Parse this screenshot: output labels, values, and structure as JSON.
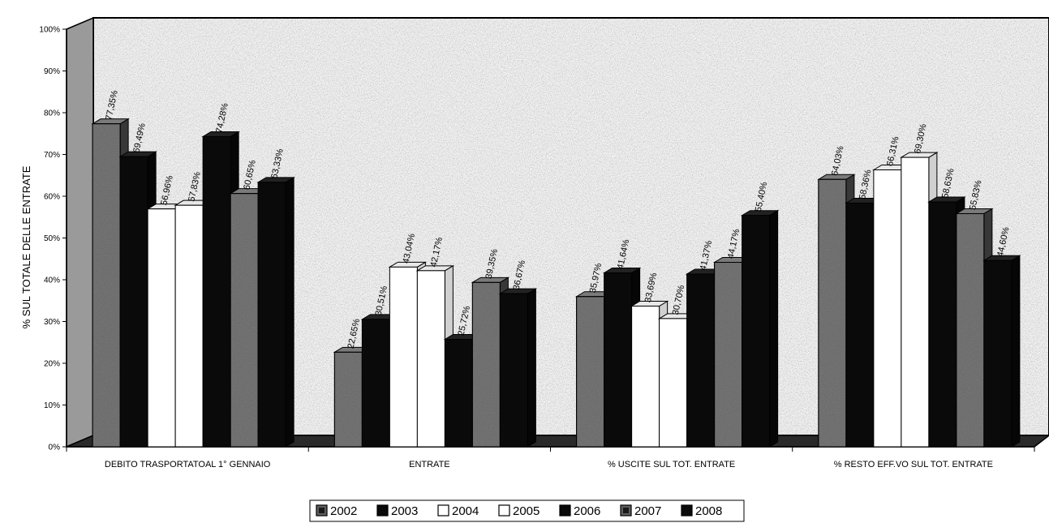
{
  "chart_data": {
    "type": "bar",
    "title": "",
    "xlabel": "",
    "ylabel": "% SUL TOTALE DELLE ENTRATE",
    "ylim": [
      0,
      100
    ],
    "y_ticks": [
      "0%",
      "10%",
      "20%",
      "30%",
      "40%",
      "50%",
      "60%",
      "70%",
      "80%",
      "90%",
      "100%"
    ],
    "grid": false,
    "legend_position": "bottom",
    "categories": [
      "DEBITO TRASPORTATOAL 1° GENNAIO",
      "ENTRATE",
      "% USCITE SUL TOT. ENTRATE",
      "% RESTO EFF.VO SUL TOT. ENTRATE"
    ],
    "series": [
      {
        "name": "2002",
        "color": "#5e5e5e",
        "values": [
          77.35,
          22.65,
          35.97,
          64.03
        ],
        "labels": [
          "77,35%",
          "22,65%",
          "35,97%",
          "64,03%"
        ]
      },
      {
        "name": "2003",
        "color": "#0a0a0a",
        "values": [
          69.49,
          30.51,
          41.64,
          58.36
        ],
        "labels": [
          "69,49%",
          "30,51%",
          "41,64%",
          "58,36%"
        ]
      },
      {
        "name": "2004",
        "color": "#ffffff",
        "values": [
          56.96,
          43.04,
          33.69,
          66.31
        ],
        "labels": [
          "56,96%",
          "43,04%",
          "33,69%",
          "66,31%"
        ]
      },
      {
        "name": "2005",
        "color": "#ffffff",
        "values": [
          57.83,
          42.17,
          30.7,
          69.3
        ],
        "labels": [
          "57,83%",
          "42,17%",
          "30,70%",
          "69,30%"
        ]
      },
      {
        "name": "2006",
        "color": "#0a0a0a",
        "values": [
          74.28,
          25.72,
          41.37,
          58.63
        ],
        "labels": [
          "74,28%",
          "25,72%",
          "41,37%",
          "58,63%"
        ]
      },
      {
        "name": "2007",
        "color": "#5e5e5e",
        "values": [
          60.65,
          39.35,
          44.17,
          55.83
        ],
        "labels": [
          "60,65%",
          "39,35%",
          "44,17%",
          "55,83%"
        ]
      },
      {
        "name": "2008",
        "color": "#0a0a0a",
        "values": [
          63.33,
          36.67,
          55.4,
          44.6
        ],
        "labels": [
          "63,33%",
          "36,67%",
          "55,40%",
          "44,60%"
        ]
      }
    ]
  }
}
